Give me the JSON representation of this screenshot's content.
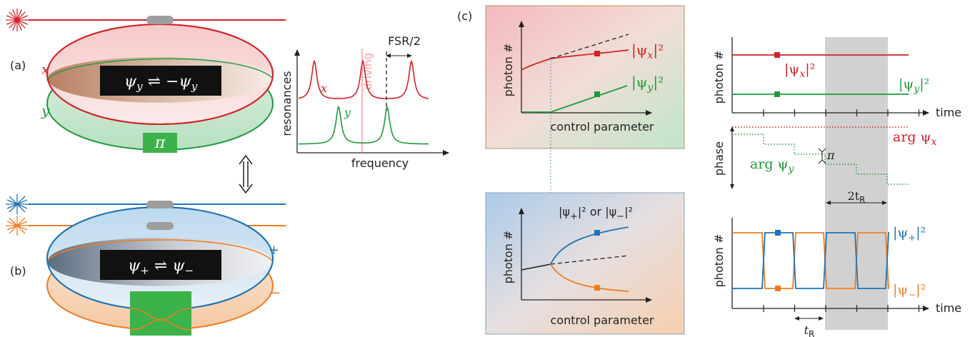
{
  "panels": {
    "a": "(a)",
    "b": "(b)",
    "c": "(c)"
  },
  "panel_a": {
    "pol_x": "x",
    "pol_y": "y",
    "box_text": "ψ_y ⇌ −ψ_y",
    "box_lhs": "ψ",
    "box_lhs_sub": "y",
    "box_arrow": " ⇌ −",
    "box_rhs": "ψ",
    "box_rhs_sub": "y",
    "phase_plate": "π"
  },
  "panel_b": {
    "plus": "+",
    "minus": "−",
    "box_lhs": "ψ",
    "box_lhs_sub": "+",
    "box_arrow": " ⇌ ",
    "box_rhs": "ψ",
    "box_rhs_sub": "−"
  },
  "resonances": {
    "ylabel": "resonances",
    "xlabel": "frequency",
    "driving": "driving",
    "fsr": "FSR/2",
    "x_label": "x",
    "y_label": "y"
  },
  "panel_c_top": {
    "ylabel": "photon #",
    "xlabel": "control parameter",
    "psi_x": "|ψ_x|²",
    "psi_y": "|ψ_y|²"
  },
  "panel_c_bottom": {
    "ylabel": "photon #",
    "xlabel": "control parameter",
    "legend_pre": "|ψ",
    "legend_sub1": "+",
    "legend_mid": "|² or |ψ",
    "legend_sub2": "−",
    "legend_post": "|²"
  },
  "time_traces": {
    "photon_label": "photon #",
    "phase_label": "phase",
    "time_label": "time",
    "time_label2": "time",
    "arg_x": "arg ψ",
    "arg_x_sub": "x",
    "arg_y": "arg ψ",
    "arg_y_sub": "y",
    "pi": "π",
    "two_tr": "2t",
    "two_tr_sub": "R",
    "tr": "t",
    "tr_sub": "R",
    "psi_x_pre": "|ψ",
    "psi_x_sub": "x",
    "psi_y_pre": "|ψ",
    "psi_y_sub": "y",
    "psi_plus_pre": "|ψ",
    "psi_plus_sub": "+",
    "psi_minus_pre": "|ψ",
    "psi_minus_sub": "−",
    "sq": "|²"
  },
  "colors": {
    "red": "#d42027",
    "green": "#1e9a3c",
    "blue": "#1f73b7",
    "orange": "#ef7d22",
    "gray": "#9e9e9e"
  }
}
